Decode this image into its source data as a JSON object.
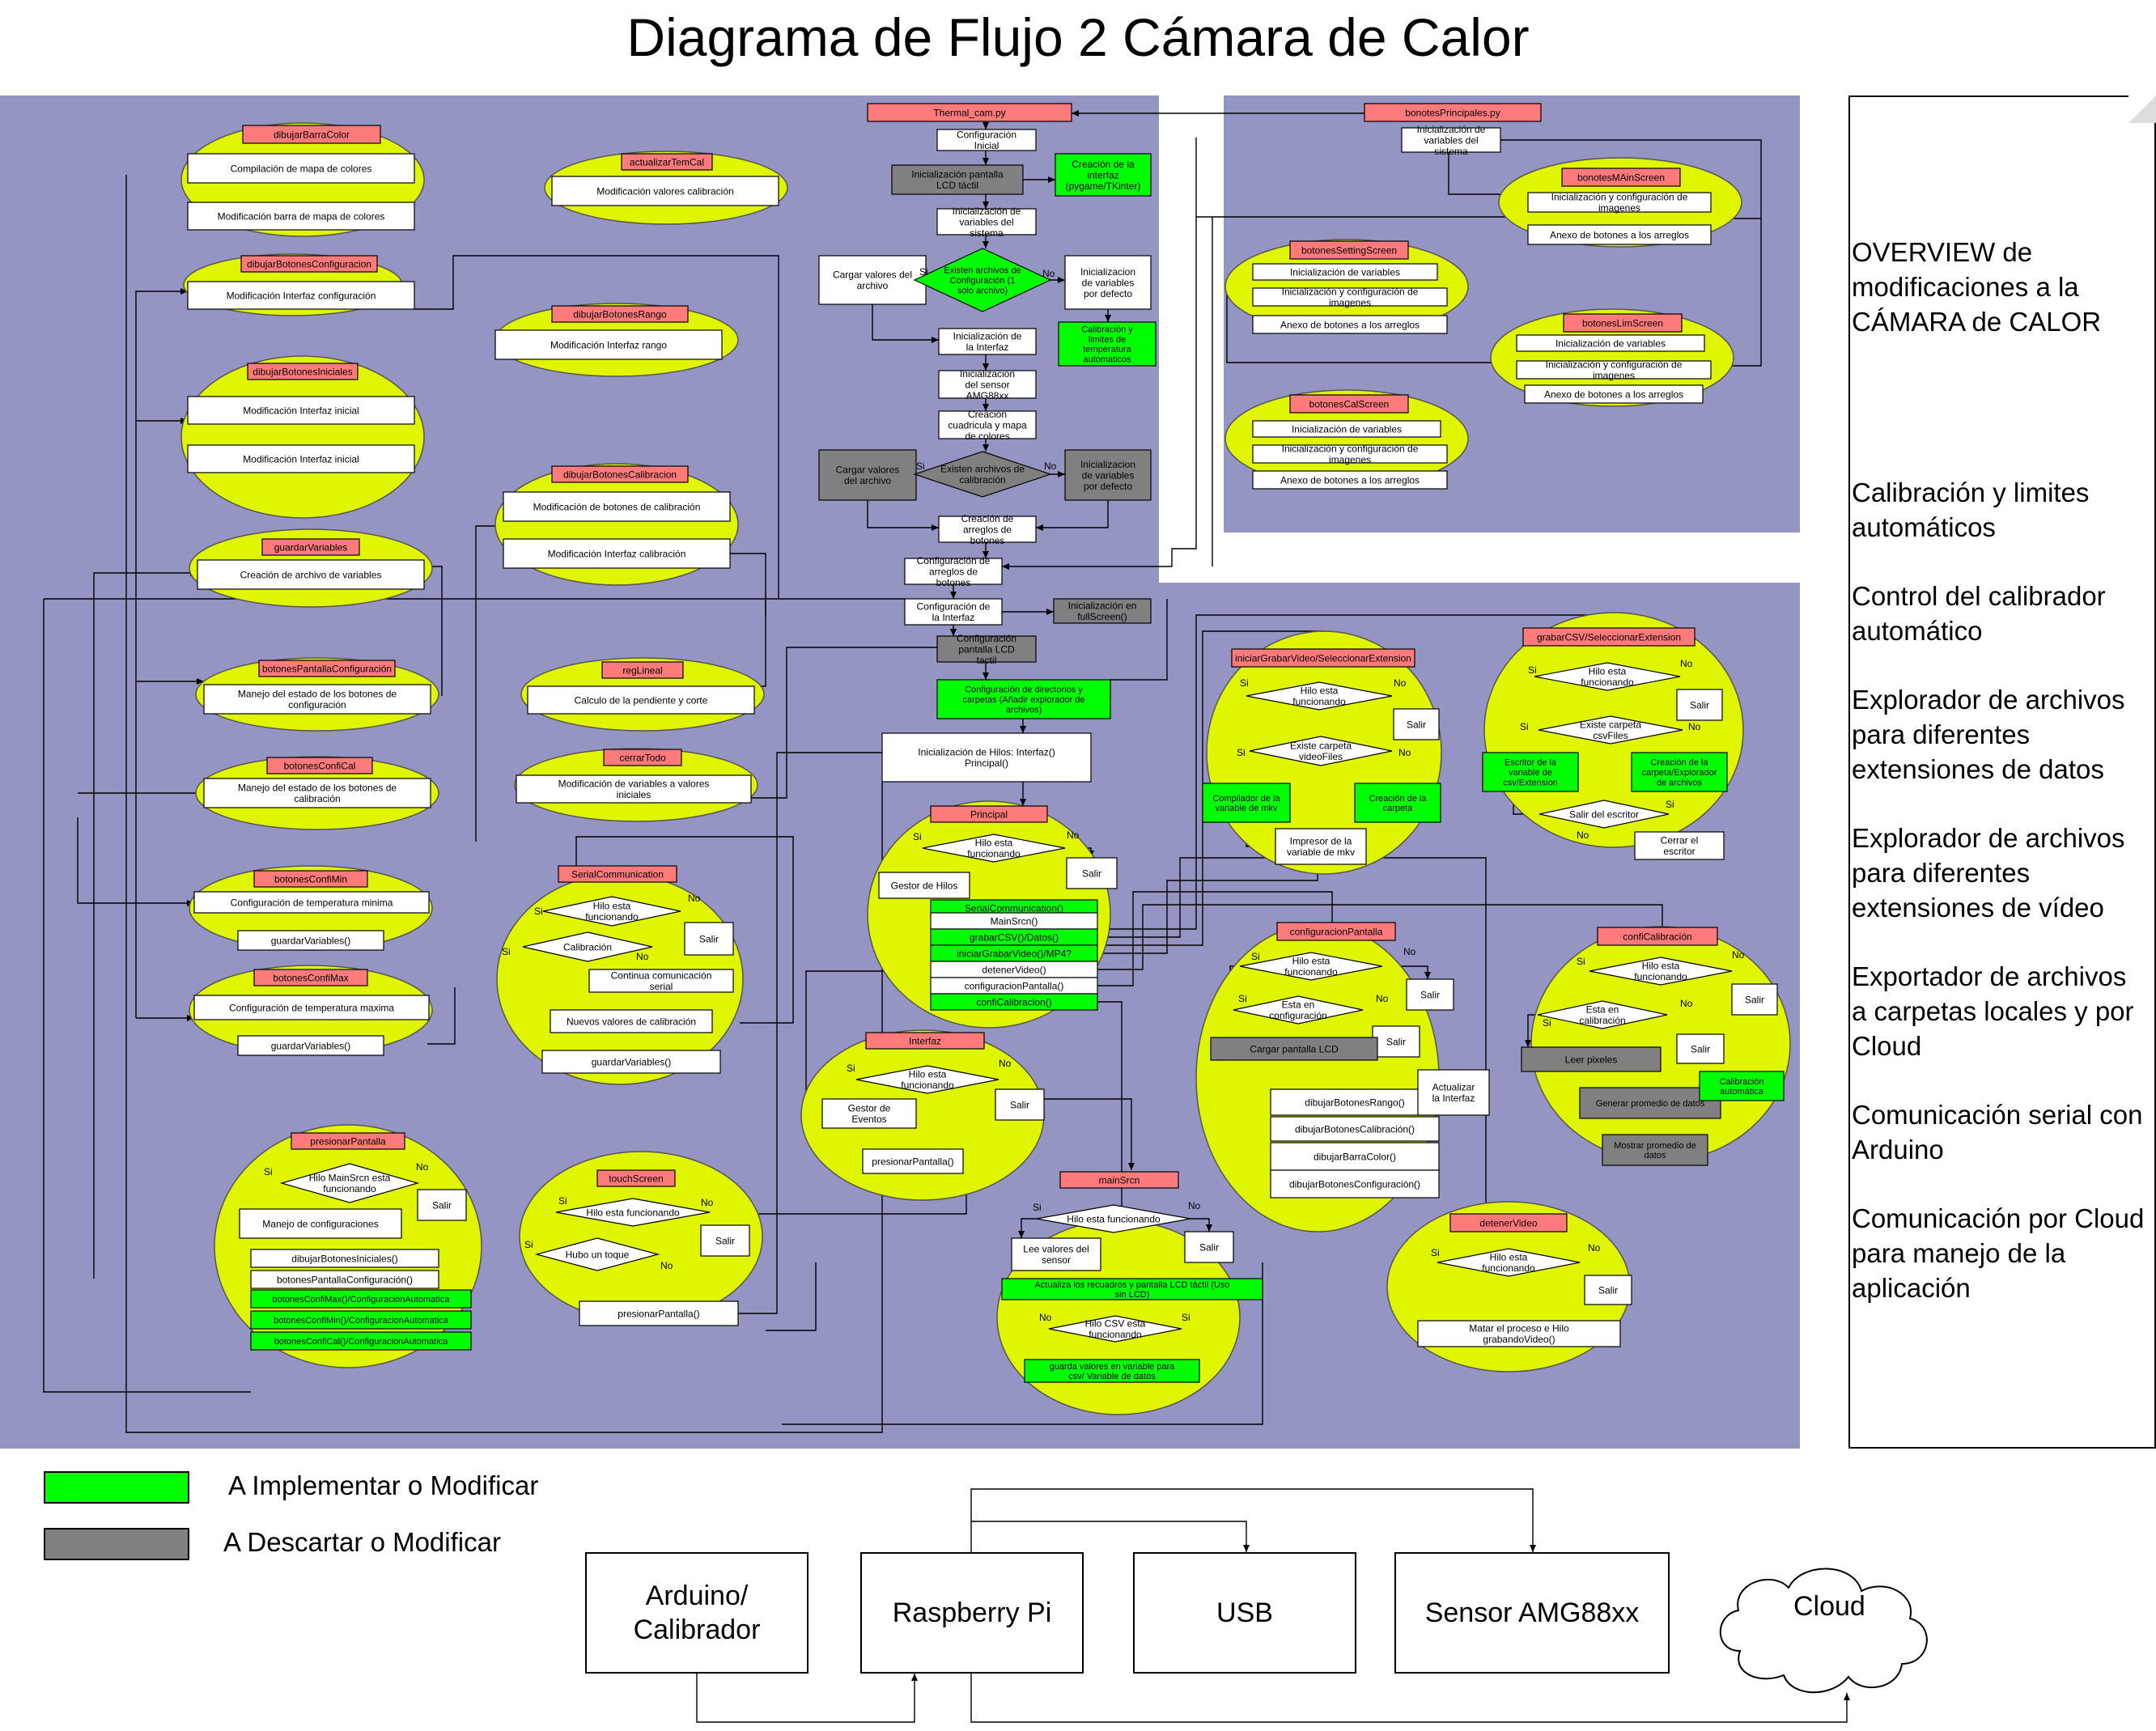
{
  "title": "Diagrama de Flujo 2 Cámara de Calor",
  "overview": [
    "OVERVIEW de modificaciones a la CÁMARA de CALOR",
    "Calibración y limites automáticos",
    "Control del calibrador automático",
    "Explorador de archivos para diferentes extensiones de datos",
    "Explorador de archivos para diferentes extensiones de vídeo",
    "Exportador de archivos a carpetas locales y por Cloud",
    "Comunicación serial con Arduino",
    "Comunicación por Cloud para manejo de la aplicación"
  ],
  "legend": [
    {
      "label": "A Implementar o Modificar",
      "color": "#00ff00"
    },
    {
      "label": "A Descartar o Modificar",
      "color": "#808080"
    }
  ],
  "hardware": {
    "arduino": "Arduino/\nCalibrador",
    "raspberry": "Raspberry Pi",
    "usb": "USB",
    "sensor": "Sensor AMG88xx",
    "cloud": "Cloud"
  },
  "colors": {
    "panel": "#9595c4",
    "ellipse": "#e0f500",
    "ellipse_gray": "#808080",
    "header": "#ff7a7a",
    "implement": "#00ff00",
    "discard": "#808080"
  },
  "modules": {
    "dibujarBarraColor": {
      "title": "dibujarBarraColor",
      "steps": [
        "Compilación de mapa de colores",
        "Modificación barra de mapa de colores"
      ]
    },
    "actualizarTemCal": {
      "title": "actualizarTemCal",
      "steps": [
        "Modificación valores calibración"
      ]
    },
    "dibujarBotonesConfiguracion": {
      "title": "dibujarBotonesConfiguracion",
      "steps": [
        "Modificación Interfaz configuración"
      ]
    },
    "dibujarBotonesRango": {
      "title": "dibujarBotonesRango",
      "steps": [
        "Modificación Interfaz rango"
      ]
    },
    "dibujarBotonesIniciales": {
      "title": "dibujarBotonesIniciales",
      "steps": [
        "Modificación Interfaz inicial",
        "Modificación Interfaz inicial"
      ]
    },
    "dibujarBotonesCalibracion": {
      "title": "dibujarBotonesCalibracion",
      "steps": [
        "Modificación de botones de calibración",
        "Modificación Interfaz calibración"
      ]
    },
    "guardarVariables": {
      "title": "guardarVariables",
      "steps": [
        "Creación de archivo de variables"
      ]
    },
    "botonesPantallaConfiguracion": {
      "title": "botonesPantallaConfiguración",
      "steps": [
        "Manejo del estado de los botones de configuración"
      ]
    },
    "regLineal": {
      "title": "regLineal",
      "steps": [
        "Calculo de la pendiente y corte"
      ]
    },
    "botonesConfiCal": {
      "title": "botonesConfiCal",
      "steps": [
        "Manejo del estado de los botones de calibración"
      ]
    },
    "cerrarTodo": {
      "title": "cerrarTodo",
      "steps": [
        "Modificación de variables a valores iniciales"
      ]
    },
    "botonesConfiMin": {
      "title": "botonesConfiMin",
      "steps": [
        "Configuración de temperatura minima",
        "guardarVariables()"
      ]
    },
    "botonesConfiMax": {
      "title": "botonesConfiMax",
      "steps": [
        "Configuración de temperatura maxima",
        "guardarVariables()"
      ]
    },
    "serialCommunication": {
      "title": "SerialCommunication",
      "decisions": [
        "Hilo esta funcionando",
        "Calibración"
      ],
      "steps": [
        "Salir",
        "Continua comunicación serial",
        "Nuevos valores de calibración",
        "guardarVariables()"
      ]
    },
    "presionarPantalla": {
      "title": "presionarPantalla",
      "decisions": [
        "Hilo MainSrcn esta funcionando"
      ],
      "steps": [
        "Salir",
        "Manejo de configuraciones",
        "dibujarBotonesIniciales()",
        "botonesPantallaConfiguración()",
        "botonesConfiMax()/ConfiguracionAutomatica",
        "botonesConfiMin()/ConfiguracionAutomatica",
        "botonesConfiCal()/ConfiguracionAutomatica"
      ]
    },
    "touchScreen": {
      "title": "touchScreen",
      "decisions": [
        "Hilo esta funcionando",
        "Hubo un toque"
      ],
      "steps": [
        "Salir",
        "presionarPantalla()"
      ]
    },
    "principal": {
      "title": "Principal",
      "decisions": [
        "Hilo esta funcionando"
      ],
      "steps": [
        "Salir",
        "Gestor de Hilos",
        "SerialCommunication()",
        "MainSrcn()",
        "grabarCSV()/Datos()",
        "iniciarGrabarVideo()/MP4?",
        "detenerVideo()",
        "configuracionPantalla()",
        "confiCalibracion()"
      ]
    },
    "interfaz": {
      "title": "Interfaz",
      "decisions": [
        "Hilo esta funcionando"
      ],
      "steps": [
        "Salir",
        "Gestor de Eventos",
        "presionarPantalla()"
      ]
    },
    "mainSrcn": {
      "title": "mainSrcn",
      "decisions": [
        "Hilo esta funcionando",
        "Hilo CSV esta funcionando"
      ],
      "steps": [
        "Salir",
        "Lee valores del sensor",
        "Actualiza los recuadros y pantalla LCD táctil (Uso sin LCD)",
        "guarda valores en variable para csv/ Variable de datos"
      ]
    },
    "iniciarGrabarVideo": {
      "title": "iniciarGrabarVideo/SeleccionarExtension",
      "decisions": [
        "Hilo esta funcionando",
        "Existe carpeta videoFiles"
      ],
      "steps": [
        "Salir",
        "Compilador de la variable de mkv",
        "Creación de la carpeta",
        "Impresor de la variable de mkv"
      ]
    },
    "grabarCSV": {
      "title": "grabarCSV/SeleccionarExtension",
      "decisions": [
        "Hilo esta funcionando",
        "Existe carpeta csvFiles",
        "Salir del escritor"
      ],
      "steps": [
        "Salir",
        "Escritor de la variable de csv/Extension",
        "Creación de la carpeta/Explorador de archivos",
        "Cerrar el escritor"
      ]
    },
    "configuracionPantalla": {
      "title": "configuracionPantalla",
      "decisions": [
        "Hilo esta funcionando",
        "Esta en configuración"
      ],
      "steps": [
        "Salir",
        "Salir",
        "Cargar pantalla LCD",
        "dibujarBotonesRango()",
        "Actualizar la Interfaz",
        "dibujarBotonesCalibración()",
        "dibujarBarraColor()",
        "dibujarBotonesConfiguración()"
      ]
    },
    "confiCalibracion": {
      "title": "confiCalibración",
      "decisions": [
        "Hilo esta funcionando",
        "Esta en calibración"
      ],
      "steps": [
        "Salir",
        "Salir",
        "Leer pixeles",
        "Generar promedio de datos",
        "Mostrar promedio de datos",
        "Calibración automática"
      ]
    },
    "detenerVideo": {
      "title": "detenerVideo",
      "decisions": [
        "Hilo esta funcionando"
      ],
      "steps": [
        "Salir",
        "Matar el proceso e Hilo grabandoVideo()"
      ]
    },
    "bonotesPrincipales": {
      "title": "bonotesPrincipales.py",
      "steps": [
        "Inicialización de variables del sistema"
      ]
    },
    "bonotesMAinScreen": {
      "title": "bonotesMAinScreen",
      "steps": [
        "Inicialización y configuración de imagenes",
        "Anexo de botones a los arreglos"
      ]
    },
    "botonesSettingScreen": {
      "title": "botonesSettingScreen",
      "steps": [
        "Inicialización de variables",
        "Inicialización y configuración de imagenes",
        "Anexo de botones a los arreglos"
      ]
    },
    "botonesLimScreen": {
      "title": "botonesLimScreen",
      "steps": [
        "Inicialización de variables",
        "Inicialización y configuración de imagenes",
        "Anexo de botones a los arreglos"
      ]
    },
    "botonesCalScreen": {
      "title": "botonesCalScreen",
      "steps": [
        "Inicialización de variables",
        "Inicialización y configuración de imagenes",
        "Anexo de botones a los arreglos"
      ]
    }
  },
  "main_flow": {
    "title": "Thermal_cam.py",
    "steps": [
      "Configuración Inicial",
      "Inicialización pantalla LCD táctil",
      "Creación de la interfaz (pygame/TKinter)",
      "Inicialización de variables del sistema",
      "Cargar valores del archivo",
      "Existen archivos de Configuración (1 solo archivo)",
      "Inicializacion de variables por defecto",
      "Inicialización de la Interfaz",
      "Calibración y limites de temperatura automaticos",
      "Inicialización del sensor AMG88xx",
      "Creación cuadricula y mapa de colores",
      "Cargar valores del archivo",
      "Existen archivos de calibración",
      "Inicializacion de variables por defecto",
      "Creación de arreglos de botones",
      "Configuración de arreglos de botones",
      "Configuración de la Interfaz",
      "Inicialización en fullScreen()",
      "Configuración pantalla LCD tactil",
      "Configuración de directorios y carpetas (Añadir explorador de archivos)",
      "Inicialización de Hilos:",
      "Interfaz() Principal()"
    ]
  },
  "decision_labels": {
    "yes": "Si",
    "no": "No"
  }
}
